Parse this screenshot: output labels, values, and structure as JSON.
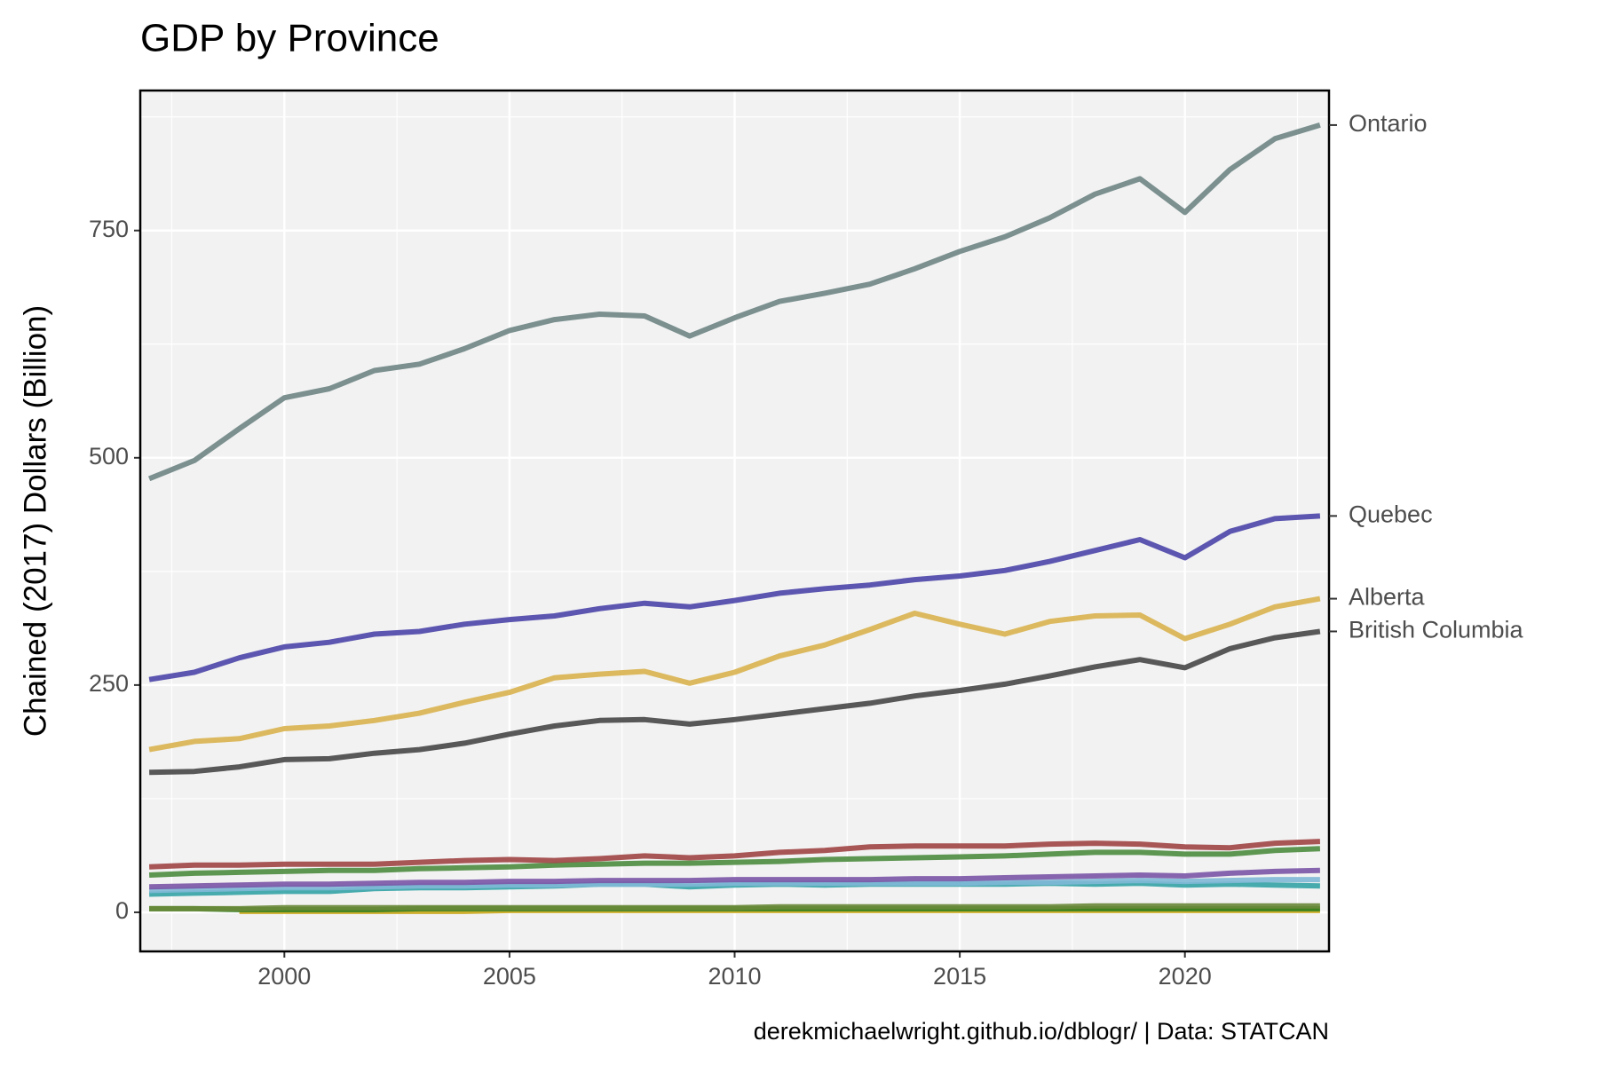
{
  "chart_data": {
    "type": "line",
    "title": "GDP by Province",
    "y_label": "Chained (2017) Dollars (Billion)",
    "caption": "derekmichaelwright.github.io/dblogr/ | Data: STATCAN",
    "x": [
      1997,
      1998,
      1999,
      2000,
      2001,
      2002,
      2003,
      2004,
      2005,
      2006,
      2007,
      2008,
      2009,
      2010,
      2011,
      2012,
      2013,
      2014,
      2015,
      2016,
      2017,
      2018,
      2019,
      2020,
      2021,
      2022,
      2023
    ],
    "xlim": [
      1996.8,
      2023.2
    ],
    "xticks": [
      2000,
      2005,
      2010,
      2015,
      2020
    ],
    "ylim": [
      -43,
      904
    ],
    "yticks": [
      0,
      250,
      500,
      750
    ],
    "grid": true,
    "series": [
      {
        "name": "Ontario",
        "color": "#6e8584",
        "values": [
          477,
          497,
          532,
          566,
          576,
          596,
          603,
          620,
          640,
          652,
          658,
          656,
          634,
          654,
          672,
          681,
          691,
          708,
          727,
          743,
          764,
          790,
          807,
          770,
          817,
          851,
          866
        ]
      },
      {
        "name": "Quebec",
        "color": "#4b45a8",
        "values": [
          256,
          264,
          280,
          292,
          297,
          306,
          309,
          317,
          322,
          326,
          334,
          340,
          336,
          343,
          351,
          356,
          360,
          366,
          370,
          376,
          386,
          398,
          410,
          390,
          419,
          433,
          436
        ]
      },
      {
        "name": "Alberta",
        "color": "#d9b34f",
        "values": [
          179,
          188,
          191,
          202,
          205,
          211,
          219,
          231,
          242,
          258,
          262,
          265,
          252,
          264,
          282,
          294,
          311,
          329,
          317,
          306,
          320,
          326,
          327,
          301,
          317,
          336,
          345
        ]
      },
      {
        "name": "British Columbia",
        "color": "#474747",
        "values": [
          154,
          155,
          160,
          168,
          169,
          175,
          179,
          186,
          196,
          205,
          211,
          212,
          207,
          212,
          218,
          224,
          230,
          238,
          244,
          251,
          260,
          270,
          278,
          269,
          290,
          302,
          309
        ]
      },
      {
        "color": "#a04444",
        "values": [
          50,
          52,
          52,
          53,
          53,
          53,
          55,
          57,
          58,
          57,
          59,
          62,
          60,
          62,
          66,
          68,
          72,
          73,
          73,
          73,
          75,
          76,
          75,
          72,
          71,
          76,
          78
        ]
      },
      {
        "color": "#4c8c3f",
        "values": [
          41,
          43,
          44,
          45,
          46,
          46,
          48,
          49,
          50,
          52,
          53,
          54,
          54,
          55,
          56,
          58,
          59,
          60,
          61,
          62,
          64,
          66,
          66,
          64,
          64,
          68,
          70
        ]
      },
      {
        "color": "#7a55a6",
        "values": [
          28,
          29,
          30,
          31,
          31,
          32,
          33,
          33,
          34,
          34,
          35,
          35,
          35,
          36,
          36,
          36,
          36,
          37,
          37,
          38,
          39,
          40,
          41,
          40,
          43,
          45,
          46
        ]
      },
      {
        "color": "#7fb8d6",
        "values": [
          24,
          25,
          26,
          27,
          27,
          28,
          29,
          29,
          30,
          30,
          31,
          31,
          31,
          32,
          32,
          32,
          32,
          32,
          32,
          33,
          33,
          34,
          35,
          34,
          35,
          36,
          36
        ]
      },
      {
        "color": "#34a3a6",
        "values": [
          20,
          21,
          22,
          23,
          23,
          26,
          27,
          27,
          28,
          29,
          31,
          31,
          28,
          30,
          31,
          30,
          31,
          31,
          31,
          31,
          32,
          31,
          32,
          30,
          31,
          30,
          29
        ]
      },
      {
        "color": "#6a8a3a",
        "values": [
          4,
          4,
          4,
          5,
          5,
          5,
          5,
          5,
          5,
          5,
          5,
          5,
          5,
          5,
          6,
          6,
          6,
          6,
          6,
          6,
          6,
          7,
          7,
          7,
          7,
          7,
          7
        ]
      },
      {
        "color": "#2e7d1f",
        "values": [
          4,
          4,
          3,
          3,
          3,
          3,
          4,
          4,
          4,
          4,
          4,
          4,
          4,
          4,
          4,
          4,
          4,
          4,
          4,
          4,
          4,
          4,
          4,
          4,
          4,
          4,
          4
        ]
      },
      {
        "color": "#c9a516",
        "values": [
          null,
          null,
          1,
          1,
          1,
          1,
          1,
          1,
          2,
          2,
          2,
          2,
          2,
          2,
          2,
          2,
          2,
          2,
          2,
          2,
          2,
          2,
          2,
          2,
          2,
          2,
          2
        ]
      }
    ]
  }
}
